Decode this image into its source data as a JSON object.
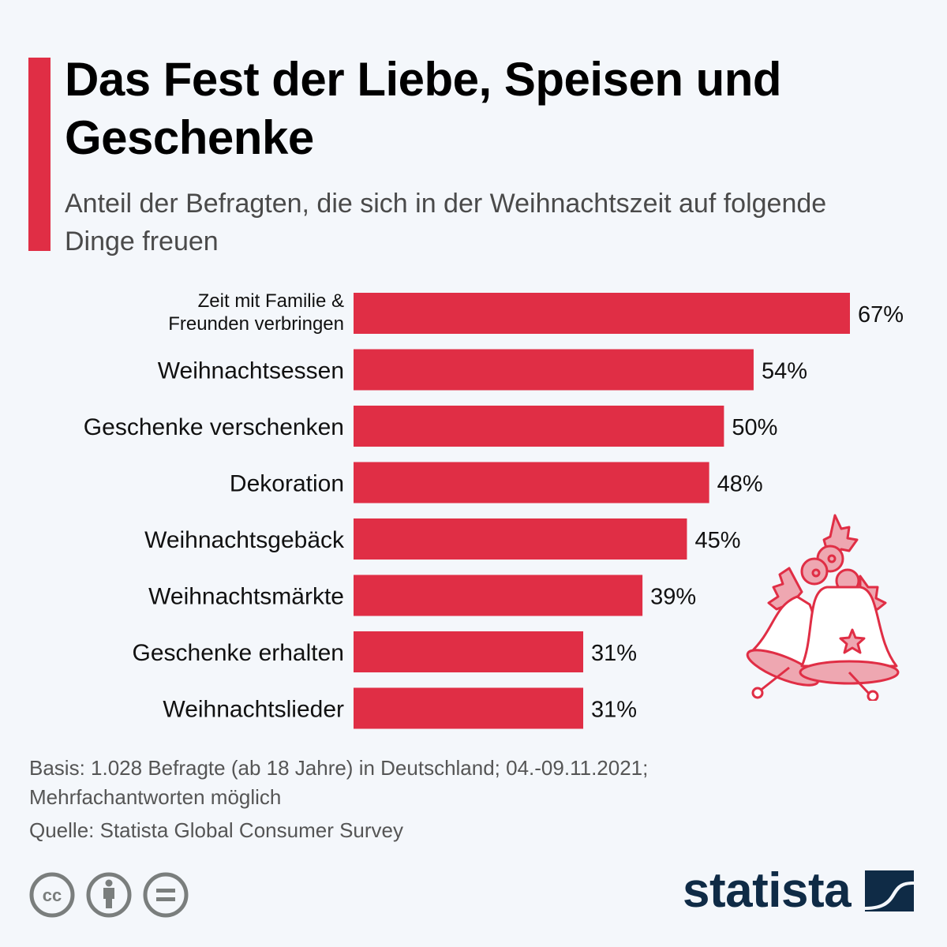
{
  "header": {
    "title": "Das Fest der Liebe, Speisen und Geschenke",
    "subtitle": "Anteil der Befragten, die sich in der Weihnachtszeit auf folgende Dinge freuen"
  },
  "colors": {
    "accent": "#e02e45",
    "background": "#f4f7fb",
    "logo": "#0f2b46",
    "icon_gray": "#7a7e7d"
  },
  "chart_data": {
    "type": "bar",
    "orientation": "horizontal",
    "title": "Das Fest der Liebe, Speisen und Geschenke",
    "subtitle": "Anteil der Befragten, die sich in der Weihnachtszeit auf folgende Dinge freuen",
    "xlabel": "",
    "ylabel": "",
    "unit": "%",
    "xlim": [
      0,
      67
    ],
    "grid": false,
    "legend": "none",
    "categories": [
      "Zeit mit Familie & Freunden verbringen",
      "Weihnachtsessen",
      "Geschenke verschenken",
      "Dekoration",
      "Weihnachtsgebäck",
      "Weihnachtsmärkte",
      "Geschenke erhalten",
      "Weihnachtslieder"
    ],
    "category_lines": [
      [
        "Zeit mit Familie &",
        "Freunden verbringen"
      ],
      [
        "Weihnachtsessen"
      ],
      [
        "Geschenke verschenken"
      ],
      [
        "Dekoration"
      ],
      [
        "Weihnachtsgebäck"
      ],
      [
        "Weihnachtsmärkte"
      ],
      [
        "Geschenke erhalten"
      ],
      [
        "Weihnachtslieder"
      ]
    ],
    "values": [
      67,
      54,
      50,
      48,
      45,
      39,
      31,
      31
    ],
    "data_labels": [
      "67%",
      "54%",
      "50%",
      "48%",
      "45%",
      "39%",
      "31%",
      "31%"
    ]
  },
  "decoration": {
    "icon": "christmas-bells-icon"
  },
  "footer": {
    "basis": "Basis: 1.028 Befragte (ab 18 Jahre) in Deutschland; 04.-09.11.2021;",
    "basis_cont": "Mehrfachantworten möglich",
    "source": "Quelle: Statista Global Consumer Survey",
    "license_icons": [
      "cc-icon",
      "attribution-icon",
      "no-derivatives-icon"
    ],
    "logo_text": "statista"
  }
}
